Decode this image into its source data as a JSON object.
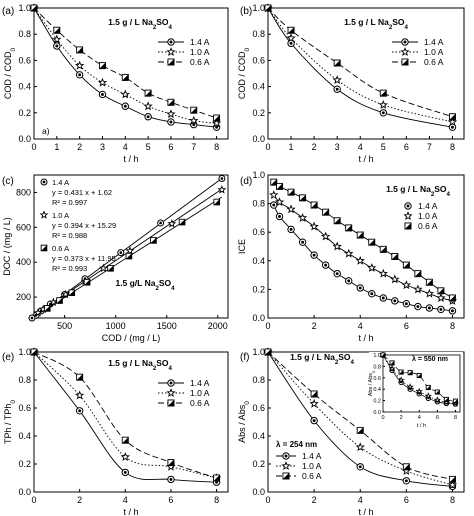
{
  "chart_data": [
    {
      "id": "a",
      "type": "line",
      "panel_label": "(a)",
      "corner_label": "a)",
      "title": "1.5 g / L Na2SO4",
      "xlabel": "t / h",
      "ylabel": "COD / COD0",
      "xlim": [
        0,
        8.5
      ],
      "ylim": [
        0,
        1.0
      ],
      "xticks": [
        "0",
        "1",
        "2",
        "3",
        "4",
        "5",
        "6",
        "7",
        "8"
      ],
      "yticks": [
        "0.0",
        "0.2",
        "0.4",
        "0.6",
        "0.8",
        "1.0"
      ],
      "legend_position": "top-right",
      "series": [
        {
          "name": "1.4 A",
          "marker": "circle",
          "line": "solid",
          "x": [
            0,
            1,
            2,
            3,
            4,
            5,
            6,
            7,
            8
          ],
          "y": [
            1.0,
            0.71,
            0.49,
            0.34,
            0.25,
            0.17,
            0.13,
            0.11,
            0.09
          ]
        },
        {
          "name": "1.0 A",
          "marker": "star",
          "line": "dotted",
          "x": [
            0,
            1,
            2,
            3,
            4,
            5,
            6,
            7,
            8
          ],
          "y": [
            1.0,
            0.76,
            0.56,
            0.43,
            0.34,
            0.25,
            0.19,
            0.14,
            0.12
          ]
        },
        {
          "name": "0.6 A",
          "marker": "half",
          "line": "dashed",
          "x": [
            0,
            1,
            2,
            3,
            4,
            5,
            6,
            7,
            8
          ],
          "y": [
            1.0,
            0.83,
            0.68,
            0.56,
            0.47,
            0.35,
            0.28,
            0.22,
            0.16
          ]
        }
      ]
    },
    {
      "id": "b",
      "type": "line",
      "panel_label": "(b)",
      "title": "1.5 g / L Na2SO4",
      "xlabel": "t / h",
      "ylabel": "COD / COD0",
      "xlim": [
        0,
        8.5
      ],
      "ylim": [
        0,
        1.0
      ],
      "xticks": [
        "0",
        "1",
        "2",
        "3",
        "4",
        "5",
        "6",
        "7",
        "8"
      ],
      "yticks": [
        "0.0",
        "0.2",
        "0.4",
        "0.6",
        "0.8",
        "1.0"
      ],
      "legend_position": "top-right",
      "series": [
        {
          "name": "1.4 A",
          "marker": "circle",
          "line": "solid",
          "x": [
            0,
            1,
            3,
            5,
            8
          ],
          "y": [
            1.0,
            0.73,
            0.38,
            0.2,
            0.09
          ]
        },
        {
          "name": "1.0 A",
          "marker": "star",
          "line": "dotted",
          "x": [
            0,
            1,
            3,
            5,
            8
          ],
          "y": [
            1.0,
            0.77,
            0.45,
            0.26,
            0.13
          ]
        },
        {
          "name": "0.6 A",
          "marker": "half",
          "line": "dashed",
          "x": [
            0,
            1,
            3,
            5,
            8
          ],
          "y": [
            1.0,
            0.83,
            0.58,
            0.35,
            0.17
          ]
        }
      ]
    },
    {
      "id": "c",
      "type": "scatter",
      "panel_label": "(c)",
      "title": "1.5 g/L Na2SO4",
      "xlabel": "COD / (mg / L)",
      "ylabel": "DOC / (mg / L)",
      "xlim": [
        200,
        2100
      ],
      "ylim": [
        80,
        900
      ],
      "xticks": [
        {
          "v": 500,
          "t": "500"
        },
        {
          "v": 1000,
          "t": "1000"
        },
        {
          "v": 1500,
          "t": "1500"
        },
        {
          "v": 2000,
          "t": "2000"
        }
      ],
      "yticks": [
        {
          "v": 200,
          "t": "200"
        },
        {
          "v": 400,
          "t": "400"
        },
        {
          "v": 600,
          "t": "600"
        },
        {
          "v": 800,
          "t": "800"
        }
      ],
      "legend_position": "top-left",
      "series": [
        {
          "name": "1.4 A",
          "marker": "circle",
          "equation": "y = 0.431 x + 1.62",
          "r2": "R² = 0.997",
          "slope": 0.431,
          "intercept": 1.62,
          "x": [
            2040,
            1440,
            1050,
            700,
            500,
            360,
            270,
            220,
            180
          ],
          "y": [
            880,
            625,
            455,
            305,
            215,
            160,
            120,
            95,
            80
          ]
        },
        {
          "name": "1.0 A",
          "marker": "star",
          "equation": "y = 0.394 x + 15.29",
          "r2": "R² = 0.988",
          "slope": 0.394,
          "intercept": 15.29,
          "x": [
            2040,
            1550,
            1140,
            880,
            700,
            510,
            390,
            290,
            240
          ],
          "y": [
            815,
            620,
            465,
            365,
            290,
            215,
            170,
            130,
            110
          ]
        },
        {
          "name": "0.6 A",
          "marker": "half",
          "equation": "y = 0.373 x + 11.95",
          "r2": "R² = 0.993",
          "slope": 0.373,
          "intercept": 11.95,
          "x": [
            1990,
            1650,
            1370,
            1130,
            950,
            720,
            570,
            450,
            330
          ],
          "y": [
            745,
            630,
            525,
            435,
            365,
            285,
            225,
            180,
            135
          ]
        }
      ]
    },
    {
      "id": "d",
      "type": "line",
      "panel_label": "(d)",
      "title": "1.5 g / L Na2SO4",
      "xlabel": "t / h",
      "ylabel": "ICE",
      "xlim": [
        0,
        8.5
      ],
      "ylim": [
        0,
        1.0
      ],
      "xticks": [
        "0",
        "2",
        "4",
        "6",
        "8"
      ],
      "yticks": [
        "0.0",
        "0.2",
        "0.4",
        "0.6",
        "0.8",
        "1.0"
      ],
      "legend_position": "top-right",
      "series": [
        {
          "name": "1.4 A",
          "marker": "circle",
          "line": "solid",
          "x": [
            0.25,
            0.5,
            1,
            1.5,
            2,
            2.5,
            3,
            3.5,
            4,
            4.5,
            5,
            5.5,
            6,
            6.5,
            7,
            7.5,
            8
          ],
          "y": [
            0.79,
            0.71,
            0.62,
            0.53,
            0.44,
            0.37,
            0.31,
            0.26,
            0.21,
            0.17,
            0.14,
            0.12,
            0.1,
            0.08,
            0.07,
            0.06,
            0.05
          ]
        },
        {
          "name": "1.0 A",
          "marker": "star",
          "line": "solid",
          "x": [
            0.25,
            0.5,
            1,
            1.5,
            2,
            2.5,
            3,
            3.5,
            4,
            4.5,
            5,
            5.5,
            6,
            6.5,
            7,
            7.5,
            8
          ],
          "y": [
            0.86,
            0.81,
            0.76,
            0.7,
            0.64,
            0.57,
            0.5,
            0.45,
            0.4,
            0.35,
            0.31,
            0.27,
            0.23,
            0.2,
            0.17,
            0.14,
            0.12
          ]
        },
        {
          "name": "0.6 A",
          "marker": "half",
          "line": "solid",
          "x": [
            0.25,
            0.5,
            1,
            1.5,
            2,
            2.5,
            3,
            3.5,
            4,
            4.5,
            5,
            5.5,
            6,
            6.5,
            7,
            7.5,
            8
          ],
          "y": [
            0.95,
            0.92,
            0.88,
            0.84,
            0.79,
            0.74,
            0.68,
            0.63,
            0.58,
            0.53,
            0.48,
            0.43,
            0.37,
            0.31,
            0.25,
            0.19,
            0.14
          ]
        }
      ]
    },
    {
      "id": "e",
      "type": "line",
      "panel_label": "(e)",
      "title": "1.5 g / L Na2SO4",
      "xlabel": "t / h",
      "ylabel": "TPh / TPh0",
      "xlim": [
        0,
        8.5
      ],
      "ylim": [
        0,
        1.0
      ],
      "xticks": [
        "0",
        "2",
        "4",
        "6",
        "8"
      ],
      "yticks": [
        "0.0",
        "0.2",
        "0.4",
        "0.6",
        "0.8",
        "1.0"
      ],
      "legend_position": "top-right",
      "series": [
        {
          "name": "1.4 A",
          "marker": "circle",
          "line": "solid",
          "x": [
            0,
            2,
            4,
            6,
            8
          ],
          "y": [
            1.0,
            0.58,
            0.14,
            0.09,
            0.07
          ]
        },
        {
          "name": "1.0 A",
          "marker": "star",
          "line": "dotted",
          "x": [
            0,
            2,
            4,
            6,
            8
          ],
          "y": [
            1.0,
            0.69,
            0.25,
            0.18,
            0.1
          ]
        },
        {
          "name": "0.6 A",
          "marker": "half",
          "line": "dashed",
          "x": [
            0,
            2,
            4,
            6,
            8
          ],
          "y": [
            1.0,
            0.82,
            0.37,
            0.21,
            0.1
          ]
        }
      ]
    },
    {
      "id": "f",
      "type": "line",
      "panel_label": "(f)",
      "title": "1.5 g / L Na2SO4",
      "xlabel": "t / h",
      "ylabel": "Abs / Abs0",
      "wavelength_label": "λ = 254 nm",
      "xlim": [
        0,
        8.5
      ],
      "ylim": [
        0,
        1.0
      ],
      "xticks": [
        "0",
        "2",
        "4",
        "6",
        "8"
      ],
      "yticks": [
        "0.0",
        "0.2",
        "0.4",
        "0.6",
        "0.8",
        "1.0"
      ],
      "legend_position": "bottom-left",
      "series": [
        {
          "name": "1.4 A",
          "marker": "circle",
          "line": "solid",
          "x": [
            0,
            2,
            4,
            6,
            8
          ],
          "y": [
            1.0,
            0.51,
            0.18,
            0.08,
            0.04
          ]
        },
        {
          "name": "1.0 A",
          "marker": "star",
          "line": "dotted",
          "x": [
            0,
            2,
            4,
            6,
            8
          ],
          "y": [
            1.0,
            0.63,
            0.32,
            0.15,
            0.05
          ]
        },
        {
          "name": "0.6 A",
          "marker": "half",
          "line": "dashed",
          "x": [
            0,
            2,
            4,
            6,
            8
          ],
          "y": [
            1.0,
            0.7,
            0.44,
            0.18,
            0.09
          ]
        }
      ],
      "inset": {
        "title": "λ = 550 nm",
        "xlabel": "t / h",
        "ylabel": "Abs / Abs0",
        "xlim": [
          0,
          8.5
        ],
        "ylim": [
          0,
          1.0
        ],
        "xticks": [
          "0",
          "2",
          "4",
          "6",
          "8"
        ],
        "yticks": [
          "0.0",
          "0.2",
          "0.4",
          "0.6",
          "0.8",
          "1.0"
        ],
        "series": [
          {
            "name": "1.4 A",
            "marker": "circle",
            "line": "solid",
            "x": [
              0,
              1,
              2,
              3,
              4,
              5,
              6,
              7,
              8
            ],
            "y": [
              1.0,
              0.73,
              0.52,
              0.4,
              0.32,
              0.24,
              0.18,
              0.15,
              0.14
            ]
          },
          {
            "name": "1.0 A",
            "marker": "star",
            "line": "dotted",
            "x": [
              0,
              1,
              2,
              3,
              4,
              5,
              6,
              7,
              8
            ],
            "y": [
              1.0,
              0.76,
              0.56,
              0.44,
              0.36,
              0.28,
              0.21,
              0.17,
              0.15
            ]
          },
          {
            "name": "0.6 A",
            "marker": "half",
            "line": "dashed",
            "x": [
              0,
              1,
              2,
              3,
              4,
              5,
              6,
              7,
              8
            ],
            "y": [
              1.0,
              0.86,
              0.7,
              0.69,
              0.64,
              0.43,
              0.35,
              0.22,
              0.19
            ]
          }
        ]
      }
    }
  ]
}
